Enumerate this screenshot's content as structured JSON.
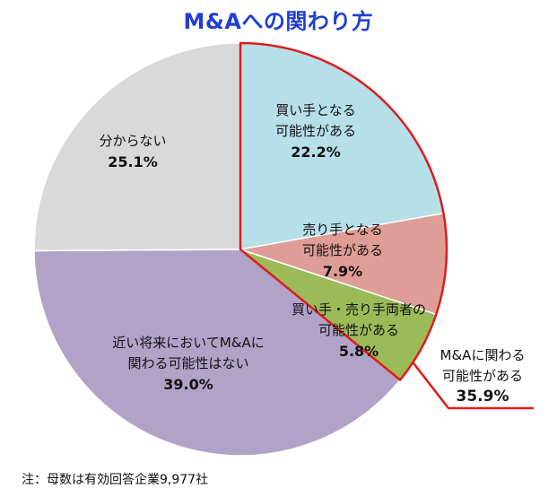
{
  "chart_data": {
    "type": "pie",
    "title": "M&Aへの関わり方",
    "slices": [
      {
        "label": [
          "買い手となる",
          "可能性がある"
        ],
        "value": 22.2,
        "value_label": "22.2%",
        "color": "#b7dfe8"
      },
      {
        "label": [
          "売り手となる",
          "可能性がある"
        ],
        "value": 7.9,
        "value_label": "7.9%",
        "color": "#df9d97"
      },
      {
        "label": [
          "買い手・売り手両者の",
          "可能性がある"
        ],
        "value": 5.8,
        "value_label": "5.8%",
        "color": "#9bbb59"
      },
      {
        "label": [
          "近い将来においてM&Aに",
          "関わる可能性はない"
        ],
        "value": 39.0,
        "value_label": "39.0%",
        "color": "#b1a3c8"
      },
      {
        "label": [
          "分からない"
        ],
        "value": 25.1,
        "value_label": "25.1%",
        "color": "#d9d9d9"
      }
    ],
    "group_annotation": {
      "label": [
        "M&Aに関わる",
        "可能性がある"
      ],
      "value": 35.9,
      "value_label": "35.9%",
      "highlight_color": "#e01b1b"
    }
  },
  "footnote": "注：母数は有効回答企業9,977社"
}
